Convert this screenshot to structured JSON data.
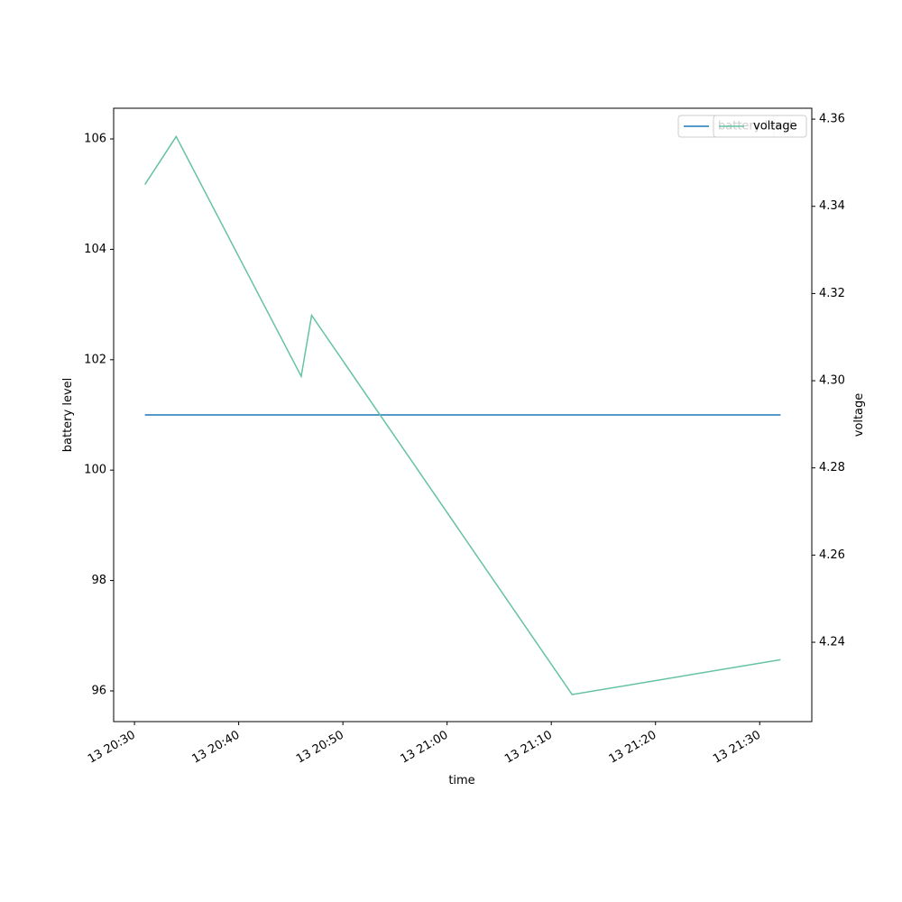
{
  "chart_data": {
    "type": "line",
    "x": [
      "13 20:31",
      "13 20:34",
      "13 20:46",
      "13 20:47",
      "13 21:12",
      "13 21:32"
    ],
    "series": [
      {
        "name": "battery level",
        "color": "#1f77b4",
        "values": [
          101,
          101,
          101,
          101,
          101,
          101
        ]
      },
      {
        "name": "voltage",
        "color": "#66c2a5",
        "axis": "y2",
        "values": [
          4.345,
          4.356,
          4.301,
          4.315,
          4.228,
          4.236
        ]
      }
    ],
    "xlabel": "time",
    "ylabel": "battery level",
    "y2label": "voltage",
    "xlim": [
      "13 20:28",
      "13 21:35"
    ],
    "xticks": [
      "13 20:30",
      "13 20:40",
      "13 20:50",
      "13 21:00",
      "13 21:10",
      "13 21:20",
      "13 21:30"
    ],
    "ylim": [
      95.444,
      106.556
    ],
    "yticks": [
      96,
      98,
      100,
      102,
      104,
      106
    ],
    "y2lim": [
      4.2218,
      4.3625
    ],
    "y2ticks": [
      4.24,
      4.26,
      4.28,
      {
        "value": 4.3,
        "label": "4.30"
      },
      4.32,
      4.34,
      4.36
    ],
    "legend": "upper right"
  }
}
